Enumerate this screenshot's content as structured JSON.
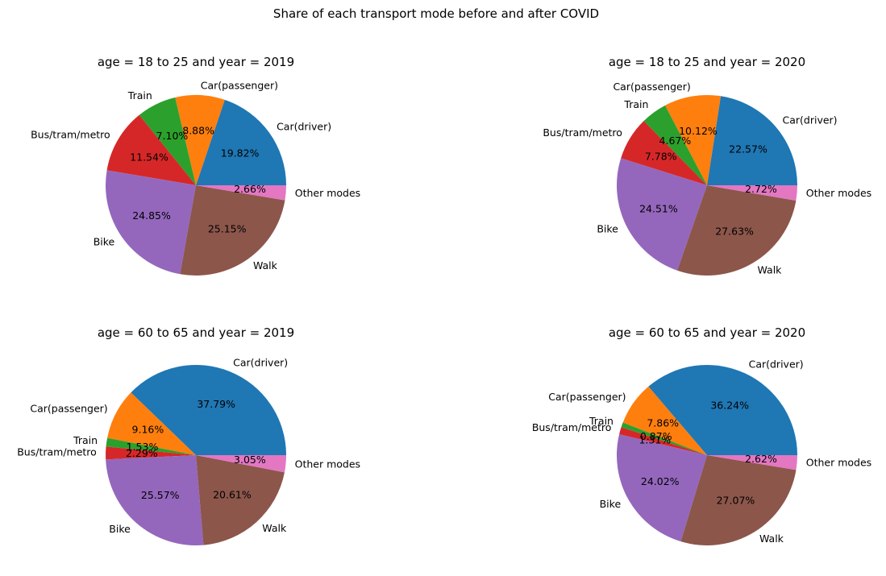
{
  "figure": {
    "suptitle": "Share of each transport mode before and after COVID"
  },
  "colors": {
    "Car(driver)": "#1f77b4",
    "Car(passenger)": "#ff7f0e",
    "Train": "#2ca02c",
    "Bus/tram/metro": "#d62728",
    "Bike": "#9467bd",
    "Walk": "#8c564b",
    "Other modes": "#e377c2"
  },
  "chart_data": [
    {
      "type": "pie",
      "title": "age = 18 to 25 and year = 2019",
      "categories": [
        "Car(driver)",
        "Car(passenger)",
        "Train",
        "Bus/tram/metro",
        "Bike",
        "Walk",
        "Other modes"
      ],
      "values": [
        19.82,
        8.88,
        7.1,
        11.54,
        24.85,
        25.15,
        2.66
      ],
      "value_labels": [
        "19.82%",
        "8.88%",
        "7.10%",
        "11.54%",
        "24.85%",
        "25.15%",
        "2.66%"
      ],
      "start_angle_deg": 0,
      "direction": "counterclockwise"
    },
    {
      "type": "pie",
      "title": "age = 18 to 25 and year = 2020",
      "categories": [
        "Car(driver)",
        "Car(passenger)",
        "Train",
        "Bus/tram/metro",
        "Bike",
        "Walk",
        "Other modes"
      ],
      "values": [
        22.57,
        10.12,
        4.67,
        7.78,
        24.51,
        27.63,
        2.72
      ],
      "value_labels": [
        "22.57%",
        "10.12%",
        "4.67%",
        "7.78%",
        "24.51%",
        "27.63%",
        "2.72%"
      ],
      "start_angle_deg": 0,
      "direction": "counterclockwise"
    },
    {
      "type": "pie",
      "title": "age = 60 to 65 and year = 2019",
      "categories": [
        "Car(driver)",
        "Car(passenger)",
        "Train",
        "Bus/tram/metro",
        "Bike",
        "Walk",
        "Other modes"
      ],
      "values": [
        37.79,
        9.16,
        1.53,
        2.29,
        25.57,
        20.61,
        3.05
      ],
      "value_labels": [
        "37.79%",
        "9.16%",
        "1.53%",
        "2.29%",
        "25.57%",
        "20.61%",
        "3.05%"
      ],
      "start_angle_deg": 0,
      "direction": "counterclockwise"
    },
    {
      "type": "pie",
      "title": "age = 60 to 65 and year = 2020",
      "categories": [
        "Car(driver)",
        "Car(passenger)",
        "Train",
        "Bus/tram/metro",
        "Bike",
        "Walk",
        "Other modes"
      ],
      "values": [
        36.24,
        7.86,
        0.87,
        1.31,
        24.02,
        27.07,
        2.62
      ],
      "value_labels": [
        "36.24%",
        "7.86%",
        "0.87%",
        "1.31%",
        "24.02%",
        "27.07%",
        "2.62%"
      ],
      "start_angle_deg": 0,
      "direction": "counterclockwise"
    }
  ]
}
